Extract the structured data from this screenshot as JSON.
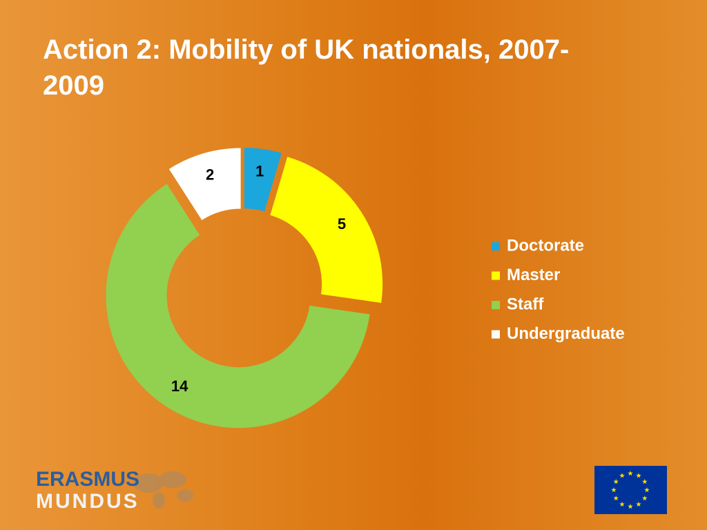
{
  "chart_data": {
    "type": "donut",
    "title": "Action 2: Mobility of UK nationals, 2007-2009",
    "categories": [
      "Doctorate",
      "Master",
      "Staff",
      "Undergraduate"
    ],
    "values": [
      1,
      5,
      14,
      2
    ],
    "colors": [
      "#1ba6dc",
      "#ffff00",
      "#92d050",
      "#ffffff"
    ],
    "legend": "right"
  },
  "logo": {
    "line1": "ERASMUS",
    "line2": "MUNDUS"
  }
}
